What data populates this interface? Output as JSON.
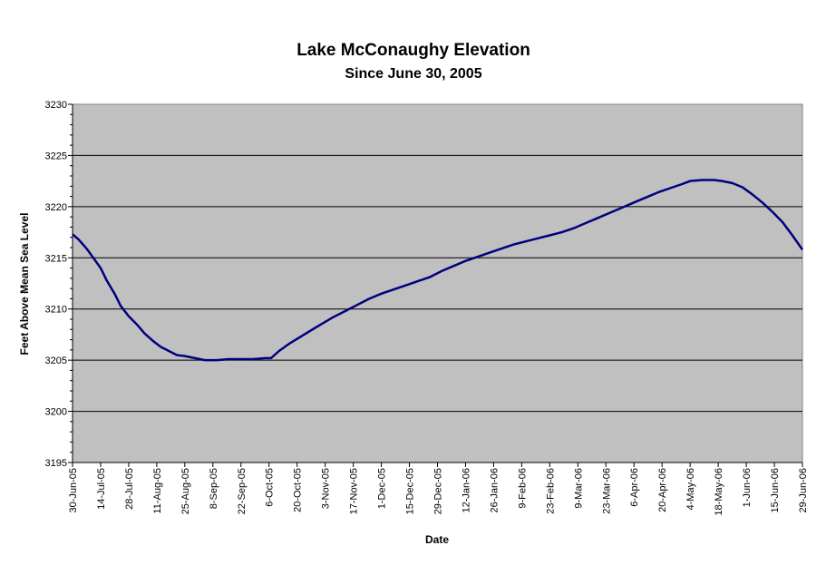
{
  "chart_data": {
    "type": "line",
    "title": "Lake McConaughy Elevation",
    "subtitle": "Since June 30, 2005",
    "xlabel": "Date",
    "ylabel": "Feet Above Mean Sea Level",
    "ylim": [
      3195,
      3230
    ],
    "yticks": [
      3195,
      3200,
      3205,
      3210,
      3215,
      3220,
      3225,
      3230
    ],
    "grid": true,
    "legend": "none",
    "x_tick_labels": [
      "30-Jun-05",
      "14-Jul-05",
      "28-Jul-05",
      "11-Aug-05",
      "25-Aug-05",
      "8-Sep-05",
      "22-Sep-05",
      "6-Oct-05",
      "20-Oct-05",
      "3-Nov-05",
      "17-Nov-05",
      "1-Dec-05",
      "15-Dec-05",
      "29-Dec-05",
      "12-Jan-06",
      "26-Jan-06",
      "9-Feb-06",
      "23-Feb-06",
      "9-Mar-06",
      "23-Mar-06",
      "6-Apr-06",
      "20-Apr-06",
      "4-May-06",
      "18-May-06",
      "1-Jun-06",
      "15-Jun-06",
      "29-Jun-06"
    ],
    "x_tick_dates": [
      "2005-06-30",
      "2005-07-14",
      "2005-07-28",
      "2005-08-11",
      "2005-08-25",
      "2005-09-08",
      "2005-09-22",
      "2005-10-06",
      "2005-10-20",
      "2005-11-03",
      "2005-11-17",
      "2005-12-01",
      "2005-12-15",
      "2005-12-29",
      "2006-01-12",
      "2006-01-26",
      "2006-02-09",
      "2006-02-23",
      "2006-03-09",
      "2006-03-23",
      "2006-04-06",
      "2006-04-20",
      "2006-05-04",
      "2006-05-18",
      "2006-06-01",
      "2006-06-15",
      "2006-06-29"
    ],
    "x_range": [
      "2005-06-30",
      "2006-06-29"
    ],
    "colors": {
      "plot_bg": "#c0c0c0",
      "line": "#000080",
      "grid": "#000000"
    },
    "series": [
      {
        "x": [
          "2005-06-30",
          "2005-07-03",
          "2005-07-07",
          "2005-07-10",
          "2005-07-14",
          "2005-07-17",
          "2005-07-21",
          "2005-07-24",
          "2005-07-28",
          "2005-08-01",
          "2005-08-05",
          "2005-08-09",
          "2005-08-13",
          "2005-08-17",
          "2005-08-21",
          "2005-08-25",
          "2005-08-30",
          "2005-09-04",
          "2005-09-10",
          "2005-09-16",
          "2005-09-22",
          "2005-09-28",
          "2005-10-04",
          "2005-10-07",
          "2005-10-11",
          "2005-10-16",
          "2005-10-21",
          "2005-10-26",
          "2005-11-01",
          "2005-11-07",
          "2005-11-13",
          "2005-11-19",
          "2005-11-25",
          "2005-12-01",
          "2005-12-07",
          "2005-12-13",
          "2005-12-19",
          "2005-12-25",
          "2005-12-31",
          "2006-01-06",
          "2006-01-12",
          "2006-01-18",
          "2006-01-24",
          "2006-01-30",
          "2006-02-05",
          "2006-02-11",
          "2006-02-17",
          "2006-02-23",
          "2006-03-01",
          "2006-03-07",
          "2006-03-13",
          "2006-03-19",
          "2006-03-25",
          "2006-03-31",
          "2006-04-06",
          "2006-04-12",
          "2006-04-18",
          "2006-04-24",
          "2006-04-30",
          "2006-05-04",
          "2006-05-10",
          "2006-05-16",
          "2006-05-20",
          "2006-05-25",
          "2006-05-30",
          "2006-06-04",
          "2006-06-09",
          "2006-06-14",
          "2006-06-19",
          "2006-06-24",
          "2006-06-29"
        ],
        "values": [
          3217.3,
          3216.8,
          3215.9,
          3215.1,
          3214.0,
          3212.8,
          3211.5,
          3210.3,
          3209.3,
          3208.5,
          3207.6,
          3206.9,
          3206.3,
          3205.9,
          3205.5,
          3205.4,
          3205.2,
          3205.0,
          3205.0,
          3205.1,
          3205.1,
          3205.1,
          3205.2,
          3205.2,
          3205.9,
          3206.6,
          3207.2,
          3207.8,
          3208.5,
          3209.2,
          3209.8,
          3210.4,
          3211.0,
          3211.5,
          3211.9,
          3212.3,
          3212.7,
          3213.1,
          3213.7,
          3214.2,
          3214.7,
          3215.1,
          3215.5,
          3215.9,
          3216.3,
          3216.6,
          3216.9,
          3217.2,
          3217.5,
          3217.9,
          3218.4,
          3218.9,
          3219.4,
          3219.9,
          3220.4,
          3220.9,
          3221.4,
          3221.8,
          3222.2,
          3222.5,
          3222.6,
          3222.6,
          3222.5,
          3222.3,
          3221.9,
          3221.2,
          3220.4,
          3219.5,
          3218.5,
          3217.2,
          3215.8
        ]
      }
    ]
  }
}
